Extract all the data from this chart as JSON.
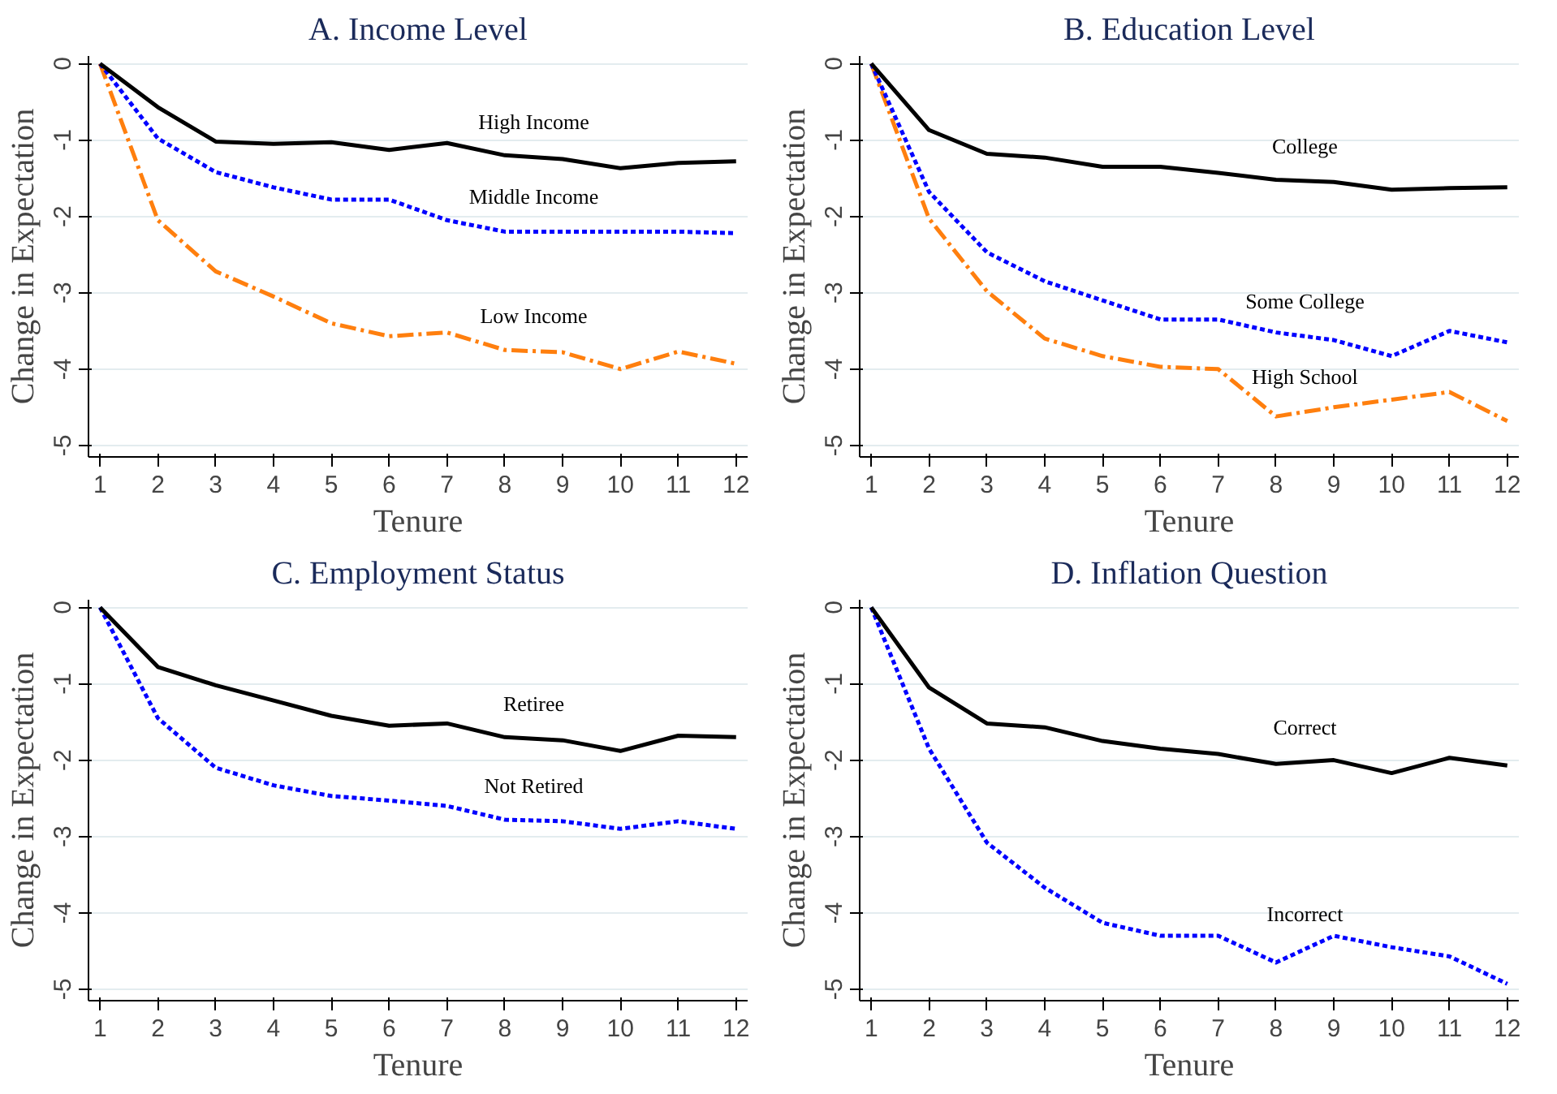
{
  "chart_data": [
    {
      "type": "line",
      "title": "A. Income Level",
      "xlabel": "Tenure",
      "ylabel": "Change in Expectation",
      "x": [
        1,
        2,
        3,
        4,
        5,
        6,
        7,
        8,
        9,
        10,
        11,
        12
      ],
      "xlim": [
        0.8,
        12.2
      ],
      "xticks": [
        1,
        2,
        3,
        4,
        5,
        6,
        7,
        8,
        9,
        10,
        11,
        12
      ],
      "ylim": [
        -5.15,
        0.1
      ],
      "yticks": [
        0,
        -1,
        -2,
        -3,
        -4,
        -5
      ],
      "grid": "y",
      "marker": "none",
      "series": [
        {
          "name": "High Income",
          "color": "#000000",
          "line_style": "solid",
          "values": [
            0,
            -0.57,
            -1.02,
            -1.05,
            -1.03,
            -1.13,
            -1.04,
            -1.2,
            -1.25,
            -1.37,
            -1.3,
            -1.28
          ]
        },
        {
          "name": "Middle Income",
          "color": "#0000ff",
          "line_style": "dashed",
          "values": [
            0,
            -0.98,
            -1.42,
            -1.62,
            -1.78,
            -1.78,
            -2.05,
            -2.2,
            -2.2,
            -2.2,
            -2.2,
            -2.22
          ]
        },
        {
          "name": "Low Income",
          "color": "#ff7f0e",
          "line_style": "dashdot",
          "values": [
            0,
            -2.05,
            -2.72,
            -3.05,
            -3.4,
            -3.57,
            -3.52,
            -3.75,
            -3.78,
            -4.0,
            -3.77,
            -3.93
          ]
        }
      ]
    },
    {
      "type": "line",
      "title": "B. Education Level",
      "xlabel": "Tenure",
      "ylabel": "Change in Expectation",
      "x": [
        1,
        2,
        3,
        4,
        5,
        6,
        7,
        8,
        9,
        10,
        11,
        12
      ],
      "xlim": [
        0.8,
        12.2
      ],
      "xticks": [
        1,
        2,
        3,
        4,
        5,
        6,
        7,
        8,
        9,
        10,
        11,
        12
      ],
      "ylim": [
        -5.15,
        0.1
      ],
      "yticks": [
        0,
        -1,
        -2,
        -3,
        -4,
        -5
      ],
      "grid": "y",
      "marker": "none",
      "series": [
        {
          "name": "College",
          "color": "#000000",
          "line_style": "solid",
          "values": [
            0,
            -0.87,
            -1.18,
            -1.23,
            -1.35,
            -1.35,
            -1.43,
            -1.52,
            -1.55,
            -1.65,
            -1.63,
            -1.62
          ]
        },
        {
          "name": "Some College",
          "color": "#0000ff",
          "line_style": "dashed",
          "values": [
            0,
            -1.68,
            -2.47,
            -2.85,
            -3.1,
            -3.35,
            -3.35,
            -3.52,
            -3.62,
            -3.83,
            -3.5,
            -3.65
          ]
        },
        {
          "name": "High School",
          "color": "#ff7f0e",
          "line_style": "dashdot",
          "values": [
            0,
            -2.03,
            -2.98,
            -3.6,
            -3.83,
            -3.97,
            -4.0,
            -4.62,
            -4.5,
            -4.4,
            -4.3,
            -4.68
          ]
        }
      ]
    },
    {
      "type": "line",
      "title": "C. Employment Status",
      "xlabel": "Tenure",
      "ylabel": "Change in Expectation",
      "x": [
        1,
        2,
        3,
        4,
        5,
        6,
        7,
        8,
        9,
        10,
        11,
        12
      ],
      "xlim": [
        0.8,
        12.2
      ],
      "xticks": [
        1,
        2,
        3,
        4,
        5,
        6,
        7,
        8,
        9,
        10,
        11,
        12
      ],
      "ylim": [
        -5.15,
        0.1
      ],
      "yticks": [
        0,
        -1,
        -2,
        -3,
        -4,
        -5
      ],
      "grid": "y",
      "marker": "none",
      "series": [
        {
          "name": "Retiree",
          "color": "#000000",
          "line_style": "solid",
          "values": [
            0,
            -0.78,
            -1.02,
            -1.22,
            -1.42,
            -1.55,
            -1.52,
            -1.7,
            -1.74,
            -1.88,
            -1.68,
            -1.7
          ]
        },
        {
          "name": "Not Retired",
          "color": "#0000ff",
          "line_style": "dashed",
          "values": [
            0,
            -1.45,
            -2.1,
            -2.33,
            -2.47,
            -2.53,
            -2.6,
            -2.78,
            -2.8,
            -2.9,
            -2.8,
            -2.9
          ]
        }
      ]
    },
    {
      "type": "line",
      "title": "D. Inflation Question",
      "xlabel": "Tenure",
      "ylabel": "Change in Expectation",
      "x": [
        1,
        2,
        3,
        4,
        5,
        6,
        7,
        8,
        9,
        10,
        11,
        12
      ],
      "xlim": [
        0.8,
        12.2
      ],
      "xticks": [
        1,
        2,
        3,
        4,
        5,
        6,
        7,
        8,
        9,
        10,
        11,
        12
      ],
      "ylim": [
        -5.15,
        0.1
      ],
      "yticks": [
        0,
        -1,
        -2,
        -3,
        -4,
        -5
      ],
      "grid": "y",
      "marker": "none",
      "series": [
        {
          "name": "Correct",
          "color": "#000000",
          "line_style": "solid",
          "values": [
            0,
            -1.05,
            -1.52,
            -1.57,
            -1.75,
            -1.85,
            -1.92,
            -2.05,
            -2.0,
            -2.17,
            -1.97,
            -2.07
          ]
        },
        {
          "name": "Incorrect",
          "color": "#0000ff",
          "line_style": "dashed",
          "values": [
            0,
            -1.85,
            -3.08,
            -3.67,
            -4.13,
            -4.3,
            -4.3,
            -4.65,
            -4.3,
            -4.45,
            -4.57,
            -4.93
          ]
        }
      ]
    }
  ]
}
